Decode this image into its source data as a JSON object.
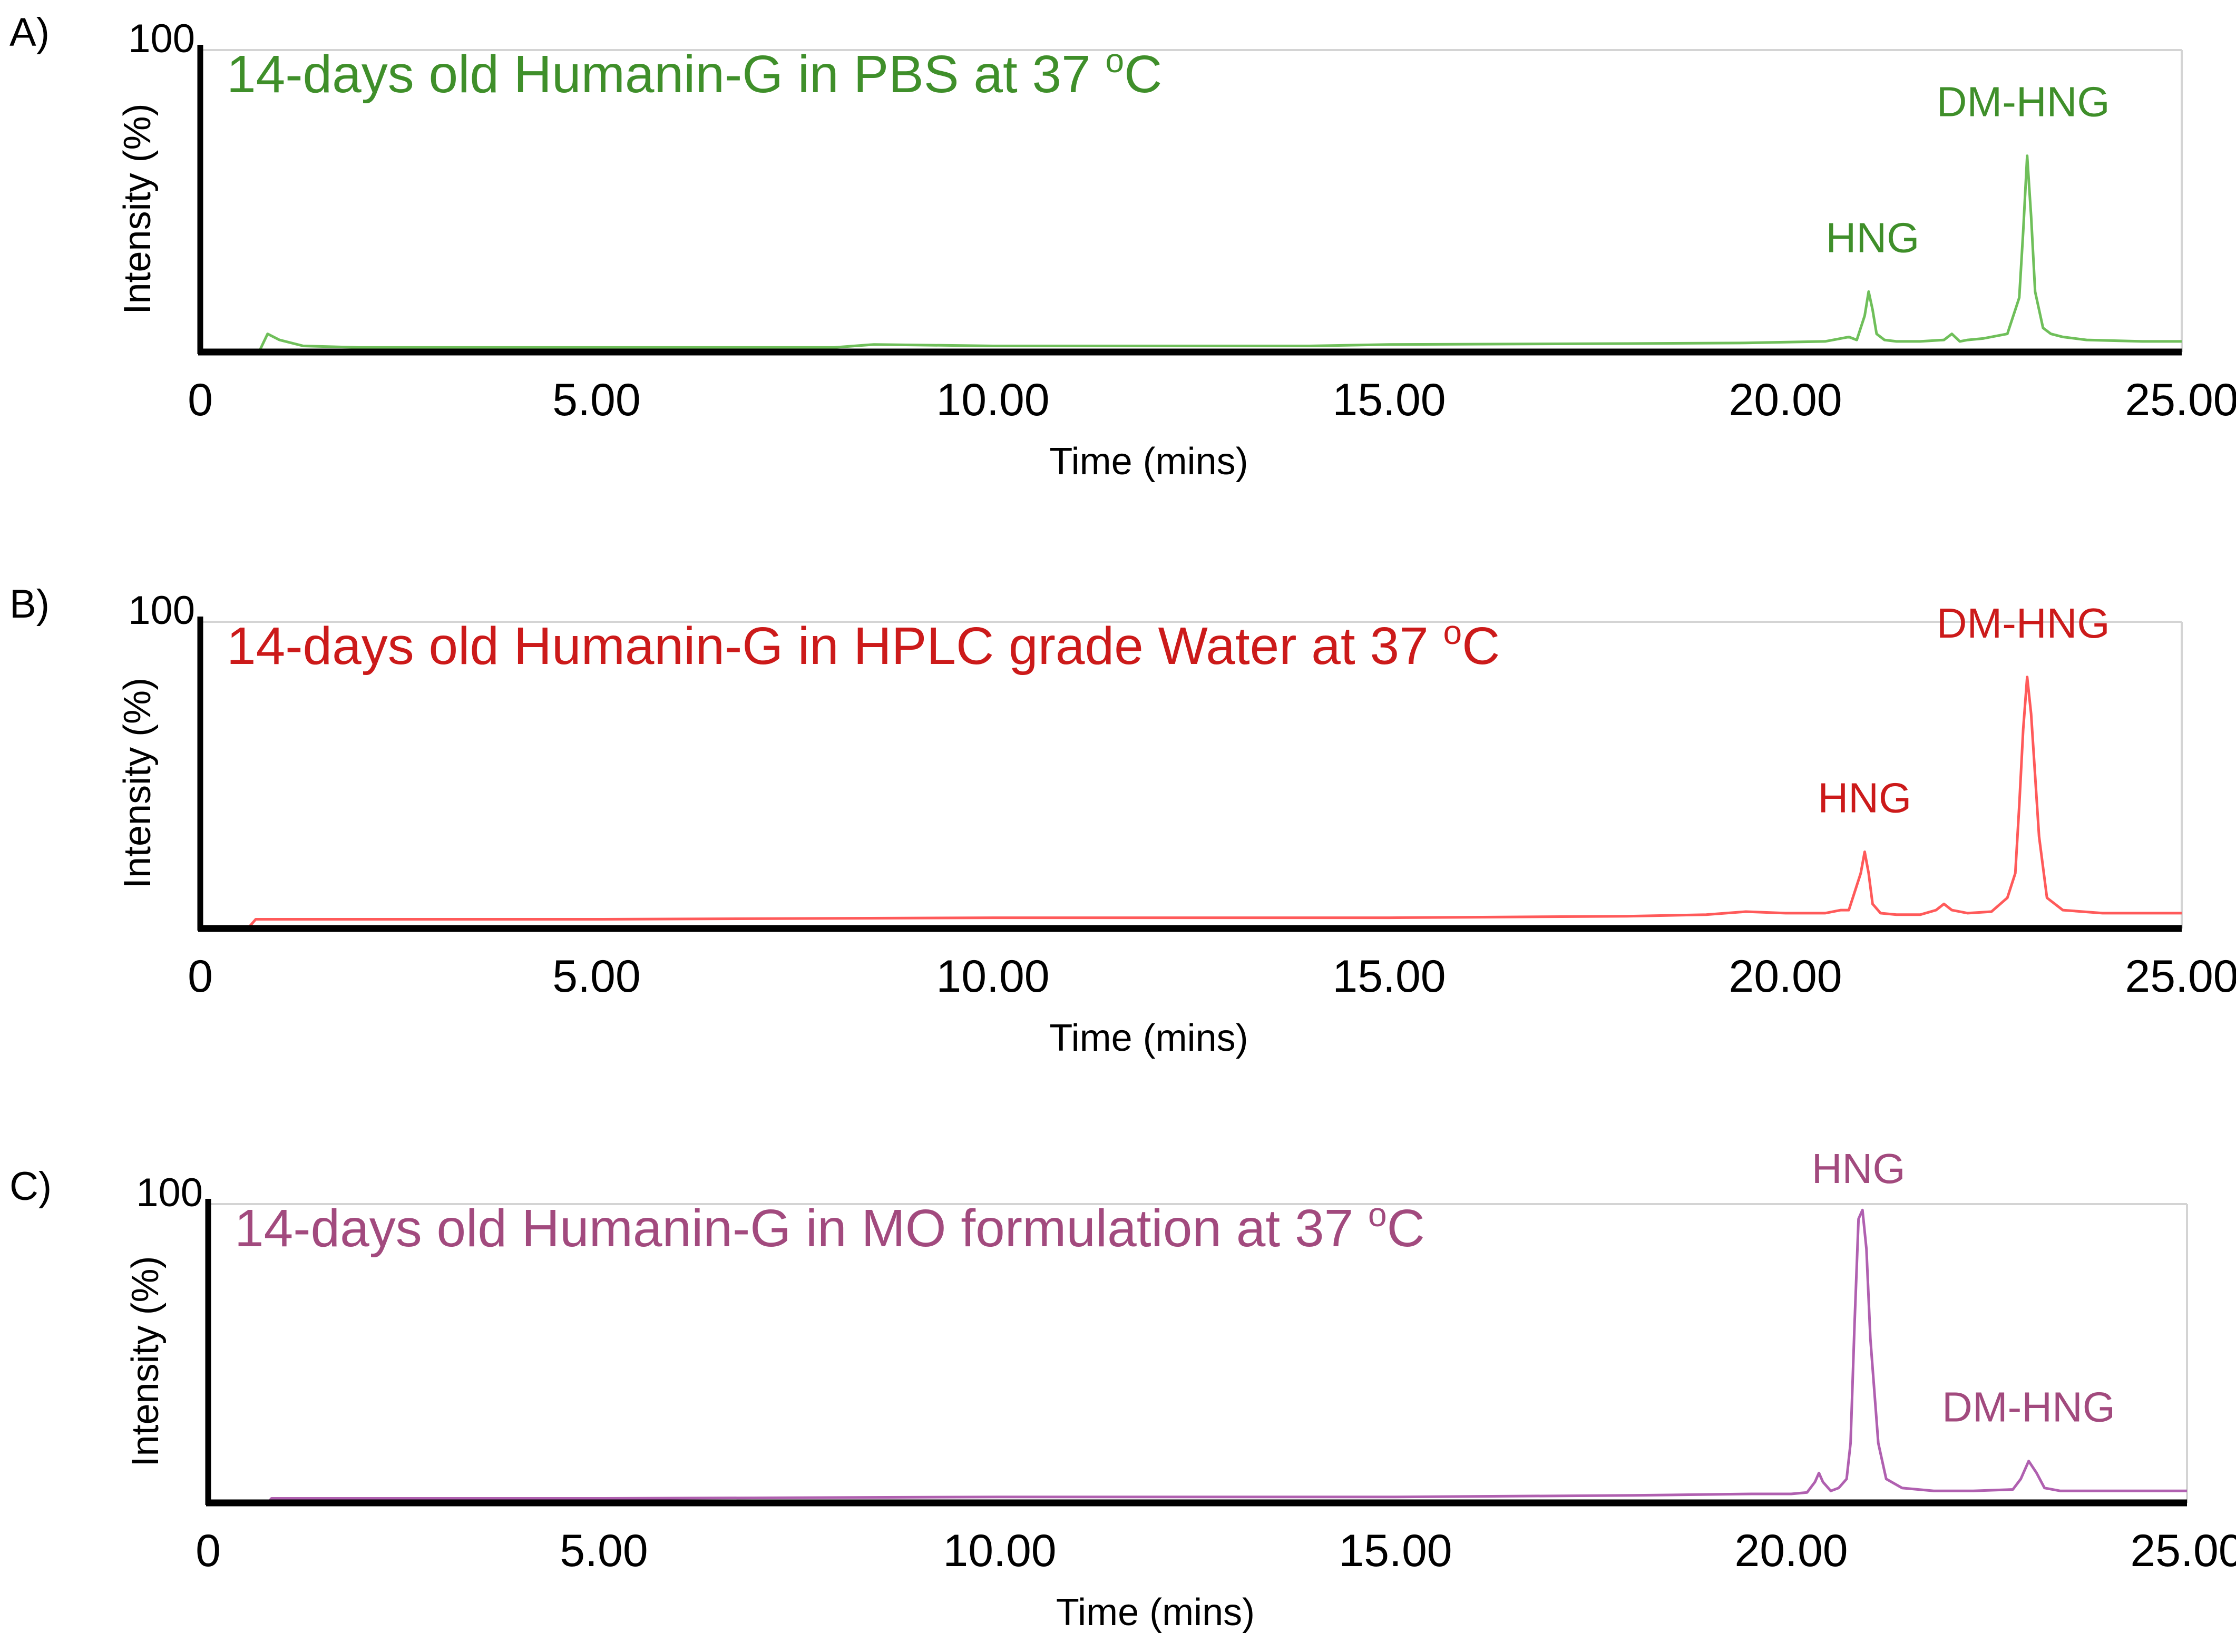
{
  "figure": {
    "type": "multi-panel chromatogram",
    "panel_count": 3
  },
  "chart_data": [
    {
      "panel_label": "A)",
      "type": "line",
      "title": "14-days old Humanin-G in PBS at 37",
      "title_superscript": "o",
      "title_suffix": "C",
      "xlabel": "Time (mins)",
      "ylabel": "Intensity (%)",
      "xlim": [
        0,
        25
      ],
      "ylim": [
        0,
        100
      ],
      "x_ticks": [
        "0",
        "5.00",
        "10.00",
        "15.00",
        "20.00",
        "25.00"
      ],
      "y_tick_label": "100",
      "color": "#3f8f2a",
      "line_color": "#6fbf5a",
      "grid": false,
      "series": [
        {
          "name": "PBS",
          "x": [
            0,
            0.6,
            0.75,
            0.85,
            1.0,
            1.3,
            2.0,
            5.0,
            8.0,
            8.5,
            10.0,
            14.0,
            15.0,
            18.0,
            19.5,
            20.5,
            20.8,
            20.9,
            21.0,
            21.05,
            21.1,
            21.15,
            21.25,
            21.4,
            21.7,
            22.0,
            22.1,
            22.2,
            22.3,
            22.5,
            22.8,
            22.9,
            22.95,
            23.0,
            23.05,
            23.1,
            23.15,
            23.25,
            23.35,
            23.5,
            23.8,
            24.5,
            25.0
          ],
          "y": [
            0,
            0,
            0.5,
            6,
            4,
            2,
            1.5,
            1.5,
            1.5,
            2.5,
            2,
            2,
            2.5,
            2.8,
            3,
            3.5,
            5,
            4,
            12,
            20,
            14,
            6,
            4,
            3.5,
            3.5,
            4,
            6,
            3.5,
            4,
            4.5,
            6,
            14,
            18,
            40,
            65,
            45,
            20,
            8,
            6,
            5,
            4,
            3.5,
            3.5
          ]
        }
      ],
      "annotations": [
        {
          "text": "HNG",
          "x": 21.1
        },
        {
          "text": "DM-HNG",
          "x": 23.0
        }
      ]
    },
    {
      "panel_label": "B)",
      "type": "line",
      "title": "14-days old Humanin-G in HPLC grade Water at 37",
      "title_superscript": "o",
      "title_suffix": "C",
      "xlabel": "Time (mins)",
      "ylabel": "Intensity (%)",
      "xlim": [
        0,
        25
      ],
      "ylim": [
        0,
        100
      ],
      "x_ticks": [
        "0",
        "5.00",
        "10.00",
        "15.00",
        "20.00",
        "25.00"
      ],
      "y_tick_label": "100",
      "color": "#cc1a1a",
      "line_color": "#ff5a5a",
      "grid": false,
      "series": [
        {
          "name": "HPLC grade Water",
          "x": [
            0,
            0.6,
            0.7,
            1.0,
            5.0,
            10.0,
            15.0,
            18.0,
            19.0,
            19.5,
            20.0,
            20.5,
            20.7,
            20.8,
            20.95,
            21.0,
            21.05,
            21.1,
            21.2,
            21.4,
            21.7,
            21.9,
            22.0,
            22.1,
            22.3,
            22.6,
            22.8,
            22.9,
            22.95,
            23.0,
            23.05,
            23.1,
            23.2,
            23.3,
            23.5,
            24.0,
            25.0
          ],
          "y": [
            0,
            0,
            3,
            3,
            3,
            3.5,
            3.5,
            4,
            4.5,
            5.5,
            5,
            5,
            6,
            6,
            18,
            25,
            18,
            8,
            5,
            4.5,
            4.5,
            6,
            8,
            6,
            5,
            5.5,
            10,
            18,
            40,
            65,
            82,
            70,
            30,
            10,
            6,
            5,
            5
          ]
        }
      ],
      "annotations": [
        {
          "text": "HNG",
          "x": 21.0
        },
        {
          "text": "DM-HNG",
          "x": 23.0
        }
      ]
    },
    {
      "panel_label": "C)",
      "type": "line",
      "title": "14-days old Humanin-G in MO formulation at 37",
      "title_superscript": "o",
      "title_suffix": "C",
      "xlabel": "Time (mins)",
      "ylabel": "Intensity (%)",
      "xlim": [
        0,
        25
      ],
      "ylim": [
        0,
        100
      ],
      "x_ticks": [
        "0",
        "5.00",
        "10.00",
        "15.00",
        "20.00",
        "25.00"
      ],
      "y_tick_label": "100",
      "color": "#a24a7e",
      "line_color": "#b060b0",
      "grid": false,
      "series": [
        {
          "name": "MO formulation",
          "x": [
            0.75,
            0.8,
            1.0,
            5.0,
            10.0,
            15.0,
            18.0,
            19.5,
            20.0,
            20.2,
            20.3,
            20.35,
            20.4,
            20.5,
            20.6,
            20.7,
            20.75,
            20.8,
            20.85,
            20.9,
            20.95,
            21.0,
            21.1,
            21.2,
            21.4,
            21.8,
            22.0,
            22.3,
            22.8,
            22.9,
            23.0,
            23.1,
            23.2,
            23.4,
            23.8,
            24.5,
            25.0
          ],
          "y": [
            0,
            1.5,
            1.5,
            1.5,
            2,
            2,
            2.5,
            3,
            3,
            3.5,
            7,
            10,
            7,
            4,
            5,
            8,
            20,
            60,
            95,
            98,
            85,
            55,
            20,
            8,
            5,
            4,
            4,
            4,
            4.5,
            8,
            14,
            10,
            5,
            4,
            4,
            4,
            4
          ]
        }
      ],
      "annotations": [
        {
          "text": "HNG",
          "x": 20.85
        },
        {
          "text": "DM-HNG",
          "x": 23.0
        }
      ]
    }
  ]
}
